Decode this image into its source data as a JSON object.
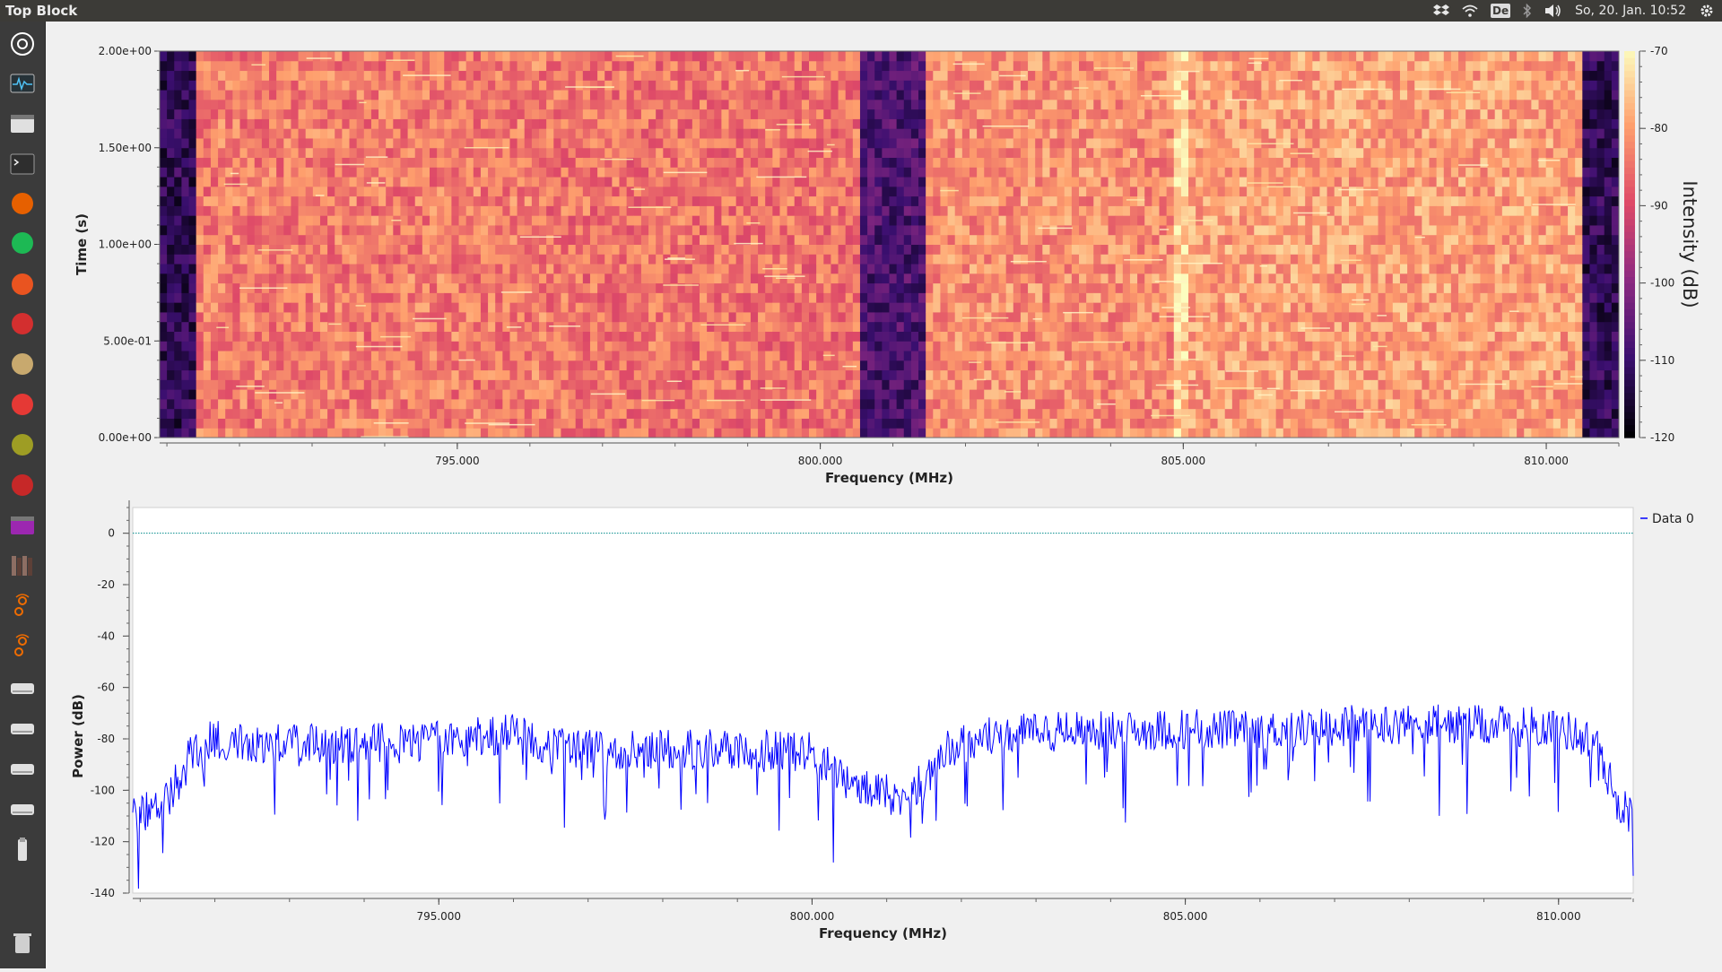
{
  "window": {
    "title": "Top Block"
  },
  "tray": {
    "keyboard_layout": "De",
    "clock": "So, 20. Jan. 10:52",
    "icons": [
      "dropbox-icon",
      "wifi-icon",
      "keyboard-layout-icon",
      "bluetooth-icon",
      "volume-icon",
      "settings-gear-icon"
    ]
  },
  "launcher": {
    "items": [
      {
        "name": "ubuntu-dash-icon",
        "color": "#ffffff"
      },
      {
        "name": "system-monitor-icon",
        "color": "#4fc3f7"
      },
      {
        "name": "file-manager-icon",
        "color": "#e0e0e0"
      },
      {
        "name": "terminal-icon",
        "color": "#2e2e2e"
      },
      {
        "name": "firefox-icon",
        "color": "#e66000"
      },
      {
        "name": "spotify-icon",
        "color": "#1db954"
      },
      {
        "name": "software-center-icon",
        "color": "#e95420"
      },
      {
        "name": "ltspice-icon",
        "color": "#d32f2f"
      },
      {
        "name": "archive-manager-icon",
        "color": "#c8a96e"
      },
      {
        "name": "settings-tool-icon",
        "color": "#e53935"
      },
      {
        "name": "inkscape-icon",
        "color": "#9e9d24"
      },
      {
        "name": "fritzing-icon",
        "color": "#c62828"
      },
      {
        "name": "window-icon",
        "color": "#9c27b0"
      },
      {
        "name": "library-icon",
        "color": "#8d6e63"
      },
      {
        "name": "gnuradio-companion-icon",
        "color": "#ef6c00"
      },
      {
        "name": "gnuradio-companion-icon-2",
        "color": "#ef6c00"
      },
      {
        "name": "drive-icon-1",
        "color": "#e0e0e0"
      },
      {
        "name": "drive-icon-2",
        "color": "#e0e0e0"
      },
      {
        "name": "drive-icon-3",
        "color": "#e0e0e0"
      },
      {
        "name": "drive-icon-4",
        "color": "#e0e0e0"
      },
      {
        "name": "usb-drive-icon",
        "color": "#e0e0e0"
      },
      {
        "name": "trash-icon",
        "color": "#d0d0d0"
      }
    ]
  },
  "chart_data": [
    {
      "type": "heatmap",
      "title": "",
      "xlabel": "Frequency (MHz)",
      "ylabel": "Time (s)",
      "colorbar_label": "Intensity (dB)",
      "xlim": [
        790.9,
        811.0
      ],
      "ylim": [
        0.0,
        2.0
      ],
      "xticks": [
        795.0,
        800.0,
        805.0,
        810.0
      ],
      "xtick_labels": [
        "795.000",
        "800.000",
        "805.000",
        "810.000"
      ],
      "yticks": [
        0.0,
        0.5,
        1.0,
        1.5,
        2.0
      ],
      "ytick_labels": [
        "0.00e+00",
        "5.00e-01",
        "1.00e+00",
        "1.50e+00",
        "2.00e+00"
      ],
      "colorbar_range": [
        -120,
        -70
      ],
      "colorbar_ticks": [
        -70,
        -80,
        -90,
        -100,
        -110,
        -120
      ],
      "colormap": [
        "#000004",
        "#3b0f70",
        "#8c2981",
        "#de4968",
        "#fe9f6d",
        "#fcfdbf"
      ],
      "bands_db": [
        {
          "from": 790.9,
          "to": 791.4,
          "level": -112
        },
        {
          "from": 791.4,
          "to": 796.2,
          "level": -84
        },
        {
          "from": 796.2,
          "to": 800.5,
          "level": -85
        },
        {
          "from": 800.5,
          "to": 801.5,
          "level": -108
        },
        {
          "from": 801.5,
          "to": 804.9,
          "level": -82
        },
        {
          "from": 804.9,
          "to": 805.1,
          "level": -74
        },
        {
          "from": 805.1,
          "to": 810.5,
          "level": -80
        },
        {
          "from": 810.5,
          "to": 811.0,
          "level": -112
        }
      ]
    },
    {
      "type": "line",
      "title": "",
      "xlabel": "Frequency (MHz)",
      "ylabel": "Power (dB)",
      "xlim": [
        790.9,
        811.0
      ],
      "ylim": [
        -140,
        10
      ],
      "xticks": [
        795.0,
        800.0,
        805.0,
        810.0
      ],
      "xtick_labels": [
        "795.000",
        "800.000",
        "805.000",
        "810.000"
      ],
      "yticks": [
        0,
        -20,
        -40,
        -60,
        -80,
        -100,
        -120,
        -140
      ],
      "grid": false,
      "legend": "top-right",
      "series": [
        {
          "name": "Data 0",
          "color": "#0000ff",
          "x": [
            790.9,
            791.2,
            791.5,
            791.7,
            792.0,
            793.0,
            794.0,
            795.0,
            796.0,
            796.5,
            797.0,
            798.0,
            799.0,
            800.0,
            800.5,
            800.8,
            801.2,
            801.5,
            801.8,
            802.5,
            803.0,
            804.0,
            805.0,
            806.0,
            807.0,
            808.0,
            809.0,
            810.0,
            810.5,
            810.8,
            811.0
          ],
          "y": [
            -110,
            -107,
            -97,
            -85,
            -80,
            -82,
            -82,
            -81,
            -78,
            -82,
            -84,
            -84,
            -84,
            -85,
            -97,
            -101,
            -102,
            -97,
            -85,
            -78,
            -77,
            -77,
            -76,
            -77,
            -75,
            -74,
            -75,
            -75,
            -82,
            -105,
            -110
          ]
        },
        {
          "name": "",
          "color": "#008b8b",
          "style": "dotted",
          "x": [
            790.9,
            811.0
          ],
          "y": [
            0,
            0
          ]
        }
      ]
    }
  ]
}
